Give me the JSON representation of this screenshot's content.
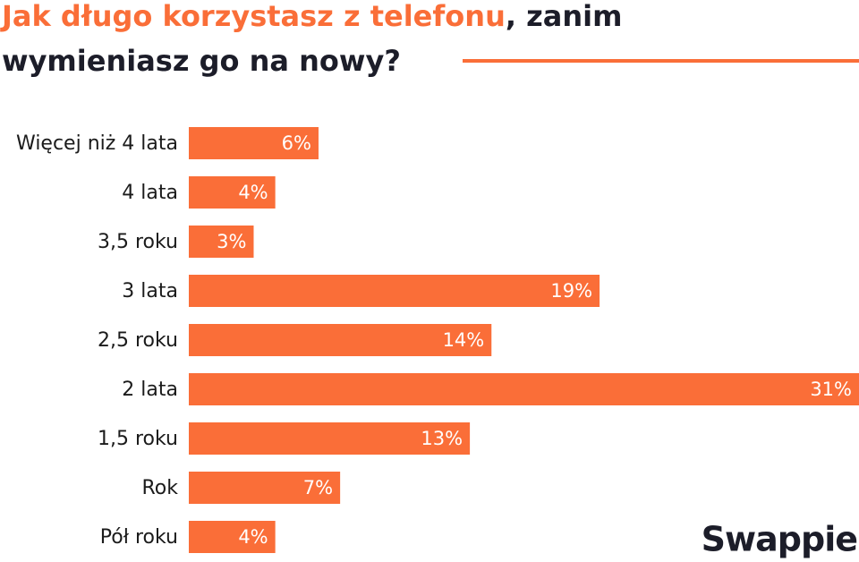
{
  "chart_data": {
    "type": "bar",
    "orientation": "horizontal",
    "title": [
      "Jak długo korzystasz z telefonu",
      ", zanim",
      "wymieniasz go na nowy?"
    ],
    "categories": [
      "Więcej niż 4 lata",
      "4 lata",
      "3,5 roku",
      "3 lata",
      "2,5 roku",
      "2 lata",
      "1,5 roku",
      "Rok",
      "Pół roku"
    ],
    "values": [
      6,
      4,
      3,
      19,
      14,
      31,
      13,
      7,
      4
    ],
    "value_labels": [
      "6%",
      "4%",
      "3%",
      "19%",
      "14%",
      "31%",
      "13%",
      "7%",
      "4%"
    ],
    "color": "#fa6e38",
    "logo": "Swappie"
  }
}
